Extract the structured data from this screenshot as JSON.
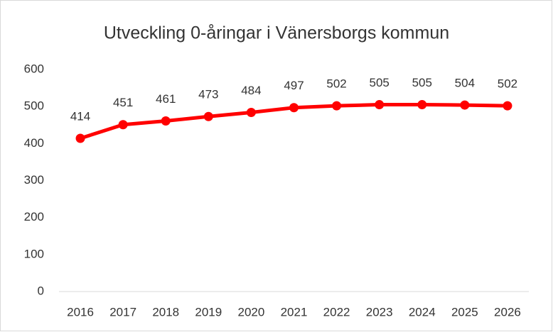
{
  "chart_data": {
    "type": "line",
    "title": "Utveckling 0-åringar i Vänersborgs kommun",
    "categories": [
      "2016",
      "2017",
      "2018",
      "2019",
      "2020",
      "2021",
      "2022",
      "2023",
      "2024",
      "2025",
      "2026"
    ],
    "values": [
      414,
      451,
      461,
      473,
      484,
      497,
      502,
      505,
      505,
      504,
      502
    ],
    "color": "#ff0000",
    "ylim": [
      0,
      600
    ],
    "yticks": [
      0,
      100,
      200,
      300,
      400,
      500,
      600
    ],
    "grid": false
  }
}
